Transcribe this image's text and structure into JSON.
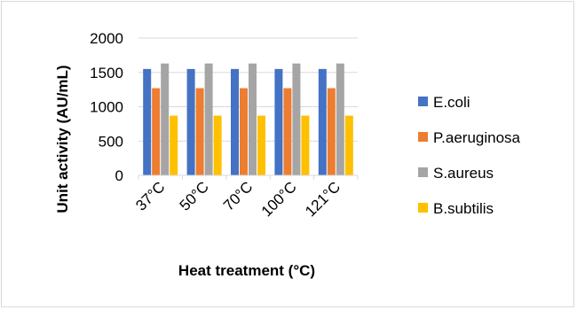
{
  "chart_data": {
    "type": "bar",
    "title": "",
    "xlabel": "Heat treatment (°C)",
    "ylabel": "Unit activity (AU/mL)",
    "categories": [
      "37°C",
      "50°C",
      "70°C",
      "100°C",
      "121°C"
    ],
    "ylim": [
      0,
      2000
    ],
    "yticks": [
      0,
      500,
      1000,
      1500,
      2000
    ],
    "grid": true,
    "legend_position": "right",
    "series": [
      {
        "name": "E.coli",
        "color": "#4472c4",
        "values": [
          1550,
          1550,
          1550,
          1550,
          1550
        ]
      },
      {
        "name": "P.aeruginosa",
        "color": "#ed7d31",
        "values": [
          1270,
          1270,
          1270,
          1270,
          1270
        ]
      },
      {
        "name": "S.aureus",
        "color": "#a5a5a5",
        "values": [
          1630,
          1630,
          1630,
          1630,
          1630
        ]
      },
      {
        "name": "B.subtilis",
        "color": "#ffc000",
        "values": [
          870,
          870,
          870,
          870,
          870
        ]
      }
    ]
  }
}
